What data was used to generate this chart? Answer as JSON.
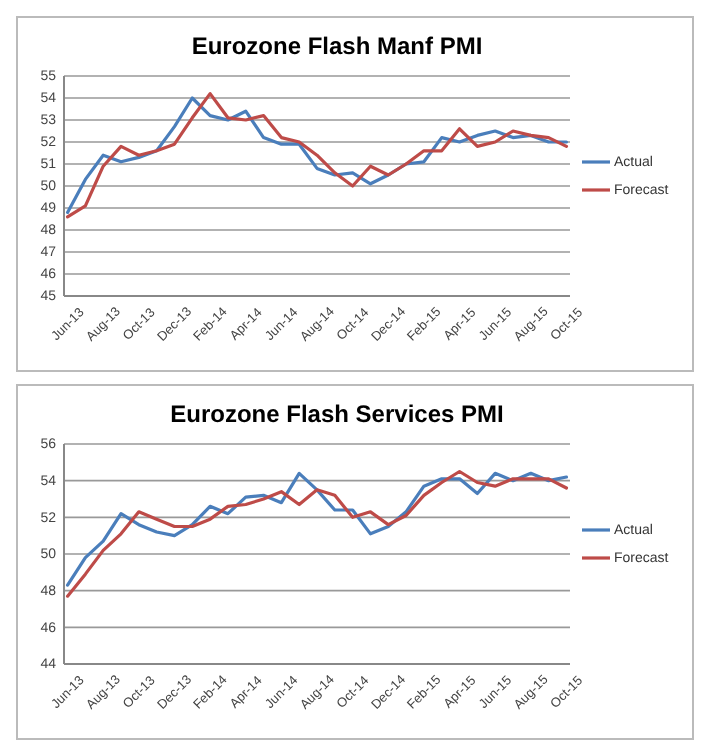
{
  "chart_data": [
    {
      "type": "line",
      "title": "Eurozone Flash Manf PMI",
      "categories": [
        "Jun-13",
        null,
        "Aug-13",
        null,
        "Oct-13",
        null,
        "Dec-13",
        null,
        "Feb-14",
        null,
        "Apr-14",
        null,
        "Jun-14",
        null,
        "Aug-14",
        null,
        "Oct-14",
        null,
        "Dec-14",
        null,
        "Feb-15",
        null,
        "Apr-15",
        null,
        "Jun-15",
        null,
        "Aug-15",
        null,
        "Oct-15"
      ],
      "series": [
        {
          "name": "Actual",
          "color": "#4a7ebb",
          "values": [
            48.8,
            50.3,
            51.4,
            51.1,
            51.3,
            51.6,
            52.7,
            54.0,
            53.2,
            53.0,
            53.4,
            52.2,
            51.9,
            51.9,
            50.8,
            50.5,
            50.6,
            50.1,
            50.5,
            51.0,
            51.1,
            52.2,
            52.0,
            52.3,
            52.5,
            52.2,
            52.3,
            52.0,
            52.0
          ]
        },
        {
          "name": "Forecast",
          "color": "#be4b48",
          "values": [
            48.6,
            49.1,
            50.9,
            51.8,
            51.4,
            51.6,
            51.9,
            53.1,
            54.2,
            53.1,
            53.0,
            53.2,
            52.2,
            52.0,
            51.4,
            50.6,
            50.0,
            50.9,
            50.5,
            51.0,
            51.6,
            51.6,
            52.6,
            51.8,
            52.0,
            52.5,
            52.3,
            52.2,
            51.8
          ]
        }
      ],
      "ylim": [
        45,
        55
      ],
      "yticks": [
        45,
        46,
        47,
        48,
        49,
        50,
        51,
        52,
        53,
        54,
        55
      ],
      "grid": "y",
      "legend": "right"
    },
    {
      "type": "line",
      "title": "Eurozone Flash Services  PMI",
      "categories": [
        "Jun-13",
        null,
        "Aug-13",
        null,
        "Oct-13",
        null,
        "Dec-13",
        null,
        "Feb-14",
        null,
        "Apr-14",
        null,
        "Jun-14",
        null,
        "Aug-14",
        null,
        "Oct-14",
        null,
        "Dec-14",
        null,
        "Feb-15",
        null,
        "Apr-15",
        null,
        "Jun-15",
        null,
        "Aug-15",
        null,
        "Oct-15"
      ],
      "series": [
        {
          "name": "Actual",
          "color": "#4a7ebb",
          "values": [
            48.3,
            49.8,
            50.7,
            52.2,
            51.6,
            51.2,
            51.0,
            51.6,
            52.6,
            52.2,
            53.1,
            53.2,
            52.8,
            54.4,
            53.5,
            52.4,
            52.4,
            51.1,
            51.5,
            52.3,
            53.7,
            54.1,
            54.1,
            53.3,
            54.4,
            54.0,
            54.4,
            54.0,
            54.2
          ]
        },
        {
          "name": "Forecast",
          "color": "#be4b48",
          "values": [
            47.7,
            48.9,
            50.2,
            51.1,
            52.3,
            51.9,
            51.5,
            51.5,
            51.9,
            52.6,
            52.7,
            53.0,
            53.4,
            52.7,
            53.5,
            53.2,
            52.0,
            52.3,
            51.6,
            52.1,
            53.2,
            53.9,
            54.5,
            53.9,
            53.7,
            54.1,
            54.1,
            54.1,
            53.6
          ]
        }
      ],
      "ylim": [
        44,
        56
      ],
      "yticks": [
        44,
        46,
        48,
        50,
        52,
        54,
        56
      ],
      "grid": "y",
      "legend": "right"
    }
  ]
}
